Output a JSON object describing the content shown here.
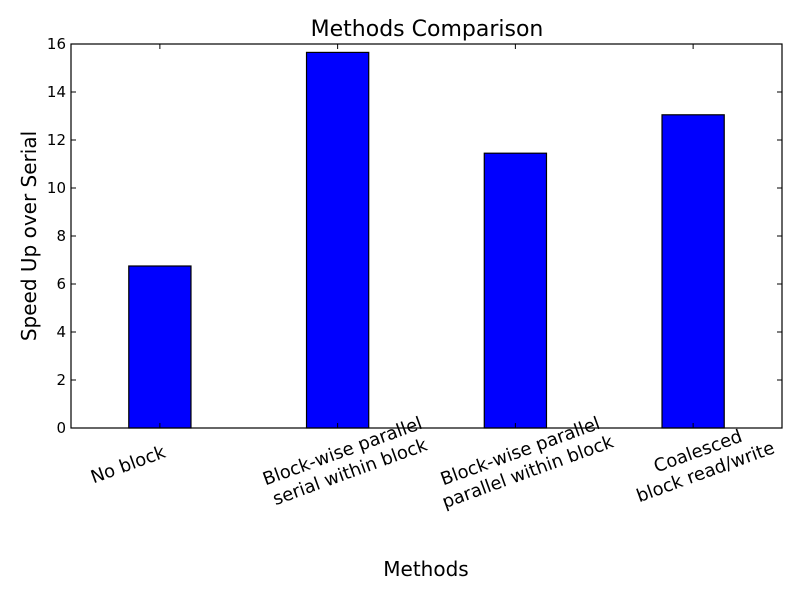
{
  "chart_data": {
    "type": "bar",
    "title": "Methods Comparison",
    "xlabel": "Methods",
    "ylabel": "Speed Up over Serial",
    "categories": [
      [
        "No block"
      ],
      [
        "Block-wise parallel",
        "serial within block"
      ],
      [
        "Block-wise parallel",
        "parallel within block"
      ],
      [
        "Coalesced",
        "block read/write"
      ]
    ],
    "values": [
      6.75,
      15.65,
      11.45,
      13.05
    ],
    "ylim": [
      0,
      16
    ],
    "yticks": [
      0,
      2,
      4,
      6,
      8,
      10,
      12,
      14,
      16
    ],
    "grid": false,
    "bar_color": "#0000ff",
    "edge_color": "#000000"
  }
}
